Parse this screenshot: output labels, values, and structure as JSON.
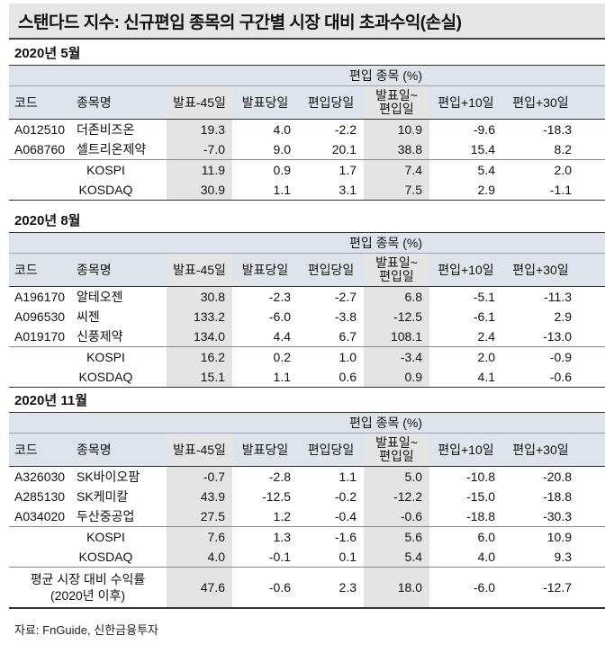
{
  "title": "스탠다드 지수: 신규편입 종목의 구간별 시장 대비 초과수익(손실)",
  "group_header": "편입 종목 (%)",
  "columns": {
    "code": "코드",
    "name": "종목명",
    "c1": "발표-45일",
    "c2": "발표당일",
    "c3": "편입당일",
    "c4a": "발표일~",
    "c4b": "편입일",
    "c5": "편입+10일",
    "c6": "편입+30일"
  },
  "sections": [
    {
      "period": "2020년 5월",
      "stocks": [
        {
          "code": "A012510",
          "name": "더존비즈온",
          "v": [
            "19.3",
            "4.0",
            "-2.2",
            "10.9",
            "-9.6",
            "-18.3"
          ]
        },
        {
          "code": "A068760",
          "name": "셀트리온제약",
          "v": [
            "-7.0",
            "9.0",
            "20.1",
            "38.8",
            "15.4",
            "8.2"
          ]
        }
      ],
      "indices": [
        {
          "name": "KOSPI",
          "v": [
            "11.9",
            "0.9",
            "1.7",
            "7.4",
            "5.4",
            "2.0"
          ]
        },
        {
          "name": "KOSDAQ",
          "v": [
            "30.9",
            "1.1",
            "3.1",
            "7.5",
            "2.9",
            "-1.1"
          ]
        }
      ]
    },
    {
      "period": "2020년 8월",
      "stocks": [
        {
          "code": "A196170",
          "name": "알테오젠",
          "v": [
            "30.8",
            "-2.3",
            "-2.7",
            "6.8",
            "-5.1",
            "-11.3"
          ]
        },
        {
          "code": "A096530",
          "name": "씨젠",
          "v": [
            "133.2",
            "-6.0",
            "-3.8",
            "-12.5",
            "-6.1",
            "2.9"
          ]
        },
        {
          "code": "A019170",
          "name": "신풍제약",
          "v": [
            "134.0",
            "4.4",
            "6.7",
            "108.1",
            "2.4",
            "-13.0"
          ]
        }
      ],
      "indices": [
        {
          "name": "KOSPI",
          "v": [
            "16.2",
            "0.2",
            "1.0",
            "-3.4",
            "2.0",
            "-0.9"
          ]
        },
        {
          "name": "KOSDAQ",
          "v": [
            "15.1",
            "1.1",
            "0.6",
            "0.9",
            "4.1",
            "-0.6"
          ]
        }
      ]
    },
    {
      "period": "2020년 11월",
      "stocks": [
        {
          "code": "A326030",
          "name": "SK바이오팜",
          "v": [
            "-0.7",
            "-2.8",
            "1.1",
            "5.0",
            "-10.8",
            "-20.8"
          ]
        },
        {
          "code": "A285130",
          "name": "SK케미칼",
          "v": [
            "43.9",
            "-12.5",
            "-0.2",
            "-12.2",
            "-15.0",
            "-18.8"
          ]
        },
        {
          "code": "A034020",
          "name": "두산중공업",
          "v": [
            "27.5",
            "1.2",
            "-0.4",
            "-0.6",
            "-18.8",
            "-30.3"
          ]
        }
      ],
      "indices": [
        {
          "name": "KOSPI",
          "v": [
            "7.6",
            "1.3",
            "-1.6",
            "5.6",
            "6.0",
            "10.9"
          ]
        },
        {
          "name": "KOSDAQ",
          "v": [
            "4.0",
            "-0.1",
            "0.1",
            "5.4",
            "4.0",
            "9.3"
          ]
        }
      ]
    }
  ],
  "average": {
    "label1": "평균 시장 대비 수익률",
    "label2": "(2020년 이후)",
    "v": [
      "47.6",
      "-0.6",
      "2.3",
      "18.0",
      "-6.0",
      "-12.7"
    ]
  },
  "source": "자료: FnGuide, 신한금융투자"
}
